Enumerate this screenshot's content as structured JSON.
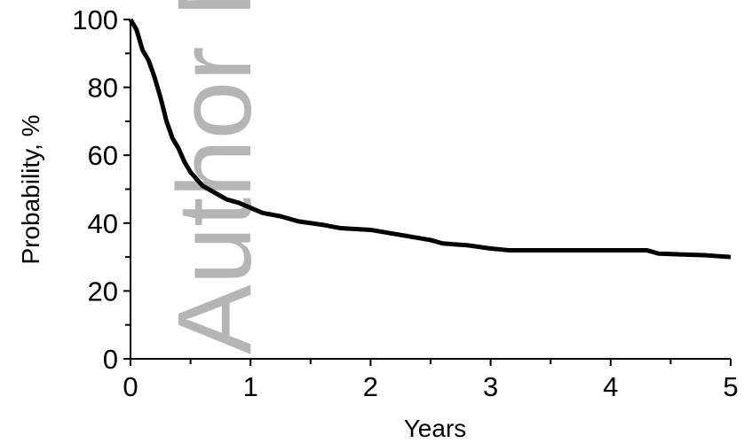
{
  "chart_data": {
    "type": "line",
    "watermark": "Author M",
    "xlabel": "Years",
    "ylabel": "Probability, %",
    "x": [
      0,
      0.05,
      0.1,
      0.15,
      0.2,
      0.25,
      0.3,
      0.35,
      0.4,
      0.45,
      0.5,
      0.6,
      0.7,
      0.8,
      0.9,
      1.0,
      1.1,
      1.25,
      1.4,
      1.6,
      1.75,
      2.0,
      2.25,
      2.5,
      2.6,
      2.8,
      3.0,
      3.15,
      3.5,
      4.0,
      4.3,
      4.4,
      4.8,
      5.0
    ],
    "series": [
      {
        "color": "#000000",
        "values": [
          100,
          97,
          91,
          88,
          83,
          77,
          70,
          65,
          62,
          58,
          55,
          51,
          49,
          47,
          46,
          44.5,
          43,
          42,
          40.5,
          39.5,
          38.5,
          38,
          36.5,
          35,
          34,
          33.5,
          32.5,
          32,
          32,
          32,
          32,
          31,
          30.5,
          30
        ]
      }
    ],
    "xlim": [
      0,
      5
    ],
    "xticks": [
      0,
      1,
      2,
      3,
      4,
      5
    ],
    "xminorticks": [
      0.5,
      1.5,
      2.5,
      3.5,
      4.5
    ],
    "ylim": [
      0,
      100
    ],
    "yticks": [
      0,
      20,
      40,
      60,
      80,
      100
    ],
    "yminorticks": [
      10,
      30,
      50,
      70,
      90
    ],
    "grid": false
  }
}
